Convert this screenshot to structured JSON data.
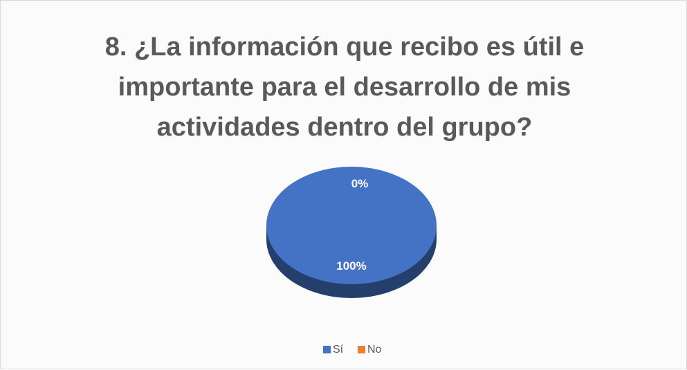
{
  "chart_data": {
    "type": "pie",
    "title": "8. ¿La información que recibo es útil e importante para el desarrollo de mis actividades dentro del grupo?",
    "categories": [
      "Sí",
      "No"
    ],
    "values": [
      100,
      0
    ],
    "value_labels": [
      "100%",
      "0%"
    ],
    "colors": [
      "#4472c4",
      "#ed7d31"
    ],
    "legend": "bottom"
  }
}
